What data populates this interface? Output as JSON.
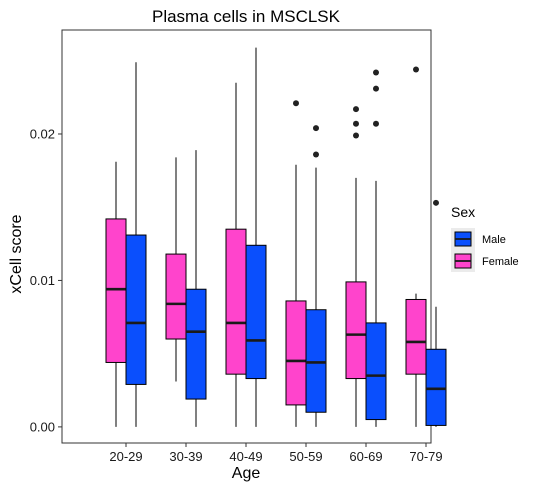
{
  "chart_data": {
    "type": "boxplot",
    "title": "Plasma cells in MSCLSK",
    "xlabel": "Age",
    "ylabel": "xCell score",
    "categories": [
      "20-29",
      "30-39",
      "40-49",
      "50-59",
      "60-69",
      "70-79"
    ],
    "ylim": [
      -0.0011,
      0.0271
    ],
    "yticks": [
      0.0,
      0.01,
      0.02
    ],
    "ytick_labels": [
      "0.00",
      "0.01",
      "0.02"
    ],
    "grid": false,
    "legend": {
      "title": "Sex",
      "position": "right",
      "entries": [
        {
          "label": "Male",
          "color": "#0a4ffd"
        },
        {
          "label": "Female",
          "color": "#ff44cc"
        }
      ]
    },
    "series": [
      {
        "name": "Female",
        "color": "#ff44cc",
        "boxes": [
          {
            "lower": 0.0,
            "q1": 0.0044,
            "median": 0.0094,
            "q3": 0.0142,
            "upper": 0.0181,
            "outliers": []
          },
          {
            "lower": 0.0031,
            "q1": 0.006,
            "median": 0.0084,
            "q3": 0.0118,
            "upper": 0.0184,
            "outliers": []
          },
          {
            "lower": 0.0,
            "q1": 0.0036,
            "median": 0.0071,
            "q3": 0.0135,
            "upper": 0.0235,
            "outliers": []
          },
          {
            "lower": 0.0,
            "q1": 0.0015,
            "median": 0.0045,
            "q3": 0.0086,
            "upper": 0.0179,
            "outliers": [
              0.0221
            ]
          },
          {
            "lower": 0.0,
            "q1": 0.0033,
            "median": 0.0063,
            "q3": 0.0099,
            "upper": 0.017,
            "outliers": [
              0.0199,
              0.0207,
              0.0217
            ]
          },
          {
            "lower": 0.0,
            "q1": 0.0036,
            "median": 0.0058,
            "q3": 0.0087,
            "upper": 0.0091,
            "outliers": [
              0.0244
            ]
          }
        ]
      },
      {
        "name": "Male",
        "color": "#0a4ffd",
        "boxes": [
          {
            "lower": 0.0,
            "q1": 0.0029,
            "median": 0.0071,
            "q3": 0.0131,
            "upper": 0.0249,
            "outliers": []
          },
          {
            "lower": 0.0,
            "q1": 0.0019,
            "median": 0.0065,
            "q3": 0.0094,
            "upper": 0.0189,
            "outliers": []
          },
          {
            "lower": 0.0,
            "q1": 0.0033,
            "median": 0.0059,
            "q3": 0.0124,
            "upper": 0.0259,
            "outliers": []
          },
          {
            "lower": 0.0,
            "q1": 0.001,
            "median": 0.0044,
            "q3": 0.008,
            "upper": 0.0177,
            "outliers": [
              0.0186,
              0.0204
            ]
          },
          {
            "lower": 0.0,
            "q1": 0.0005,
            "median": 0.0035,
            "q3": 0.0071,
            "upper": 0.0168,
            "outliers": [
              0.0207,
              0.0231,
              0.0242
            ]
          },
          {
            "lower": 0.0,
            "q1": 0.0001,
            "median": 0.0026,
            "q3": 0.0053,
            "upper": 0.0082,
            "outliers": [
              0.0153
            ]
          }
        ]
      }
    ]
  }
}
